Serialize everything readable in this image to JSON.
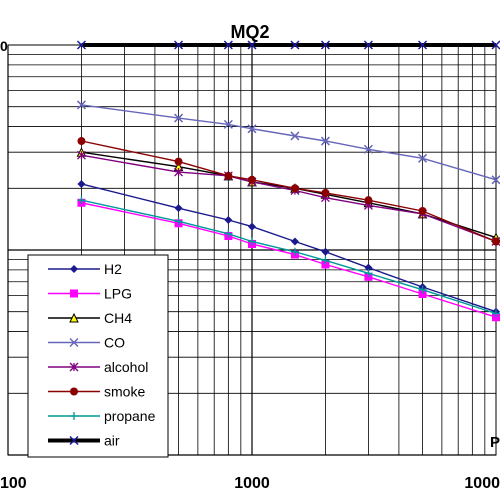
{
  "chart_data": {
    "type": "line",
    "title": "MQ2",
    "xscale": "log",
    "yscale": "log",
    "xlim": [
      100,
      10000
    ],
    "ylim": [
      0.1,
      10
    ],
    "x_tick_labels": [
      "100",
      "1000",
      "1000"
    ],
    "y_edge_label": "0",
    "x_unit_label": "P",
    "grid": true,
    "legend_position": "lower-left",
    "series": [
      {
        "name": "H2",
        "color": "#1a1a8c",
        "marker": "diamond",
        "x": [
          200,
          500,
          800,
          1000,
          1500,
          2000,
          3000,
          5000,
          10000
        ],
        "y": [
          2.1,
          1.6,
          1.4,
          1.3,
          1.1,
          0.98,
          0.82,
          0.66,
          0.5
        ]
      },
      {
        "name": "LPG",
        "color": "#ff00ff",
        "marker": "square",
        "x": [
          200,
          500,
          800,
          1000,
          1500,
          2000,
          3000,
          5000,
          10000
        ],
        "y": [
          1.7,
          1.35,
          1.17,
          1.07,
          0.95,
          0.85,
          0.74,
          0.61,
          0.47
        ]
      },
      {
        "name": "CH4",
        "color": "#000000",
        "marker": "triangle",
        "x": [
          200,
          500,
          800,
          1000,
          1500,
          2000,
          3000,
          5000,
          10000
        ],
        "y": [
          3.0,
          2.55,
          2.3,
          2.15,
          2.0,
          1.87,
          1.7,
          1.5,
          1.15
        ]
      },
      {
        "name": "CO",
        "color": "#6666bb",
        "marker": "x",
        "x": [
          200,
          500,
          800,
          1000,
          1500,
          2000,
          3000,
          5000,
          10000
        ],
        "y": [
          5.1,
          4.4,
          4.1,
          3.9,
          3.6,
          3.4,
          3.1,
          2.8,
          2.2
        ]
      },
      {
        "name": "alcohol",
        "color": "#800080",
        "marker": "star",
        "x": [
          200,
          500,
          800,
          1000,
          1500,
          2000,
          3000,
          5000,
          10000
        ],
        "y": [
          2.9,
          2.4,
          2.3,
          2.15,
          1.95,
          1.8,
          1.65,
          1.5,
          1.1
        ]
      },
      {
        "name": "smoke",
        "color": "#8b0000",
        "marker": "circle",
        "x": [
          200,
          500,
          800,
          1000,
          1500,
          2000,
          3000,
          5000,
          10000
        ],
        "y": [
          3.4,
          2.7,
          2.3,
          2.2,
          2.0,
          1.9,
          1.75,
          1.55,
          1.1
        ]
      },
      {
        "name": "propane",
        "color": "#009999",
        "marker": "plus",
        "x": [
          200,
          500,
          800,
          1000,
          1500,
          2000,
          3000,
          5000,
          10000
        ],
        "y": [
          1.75,
          1.38,
          1.2,
          1.1,
          0.98,
          0.89,
          0.77,
          0.64,
          0.49
        ]
      },
      {
        "name": "air",
        "color": "#000000",
        "marker": "x",
        "x": [
          200,
          500,
          800,
          1000,
          1500,
          2000,
          3000,
          5000,
          10000
        ],
        "y": [
          10,
          10,
          10,
          10,
          10,
          10,
          10,
          10,
          10
        ]
      }
    ]
  }
}
